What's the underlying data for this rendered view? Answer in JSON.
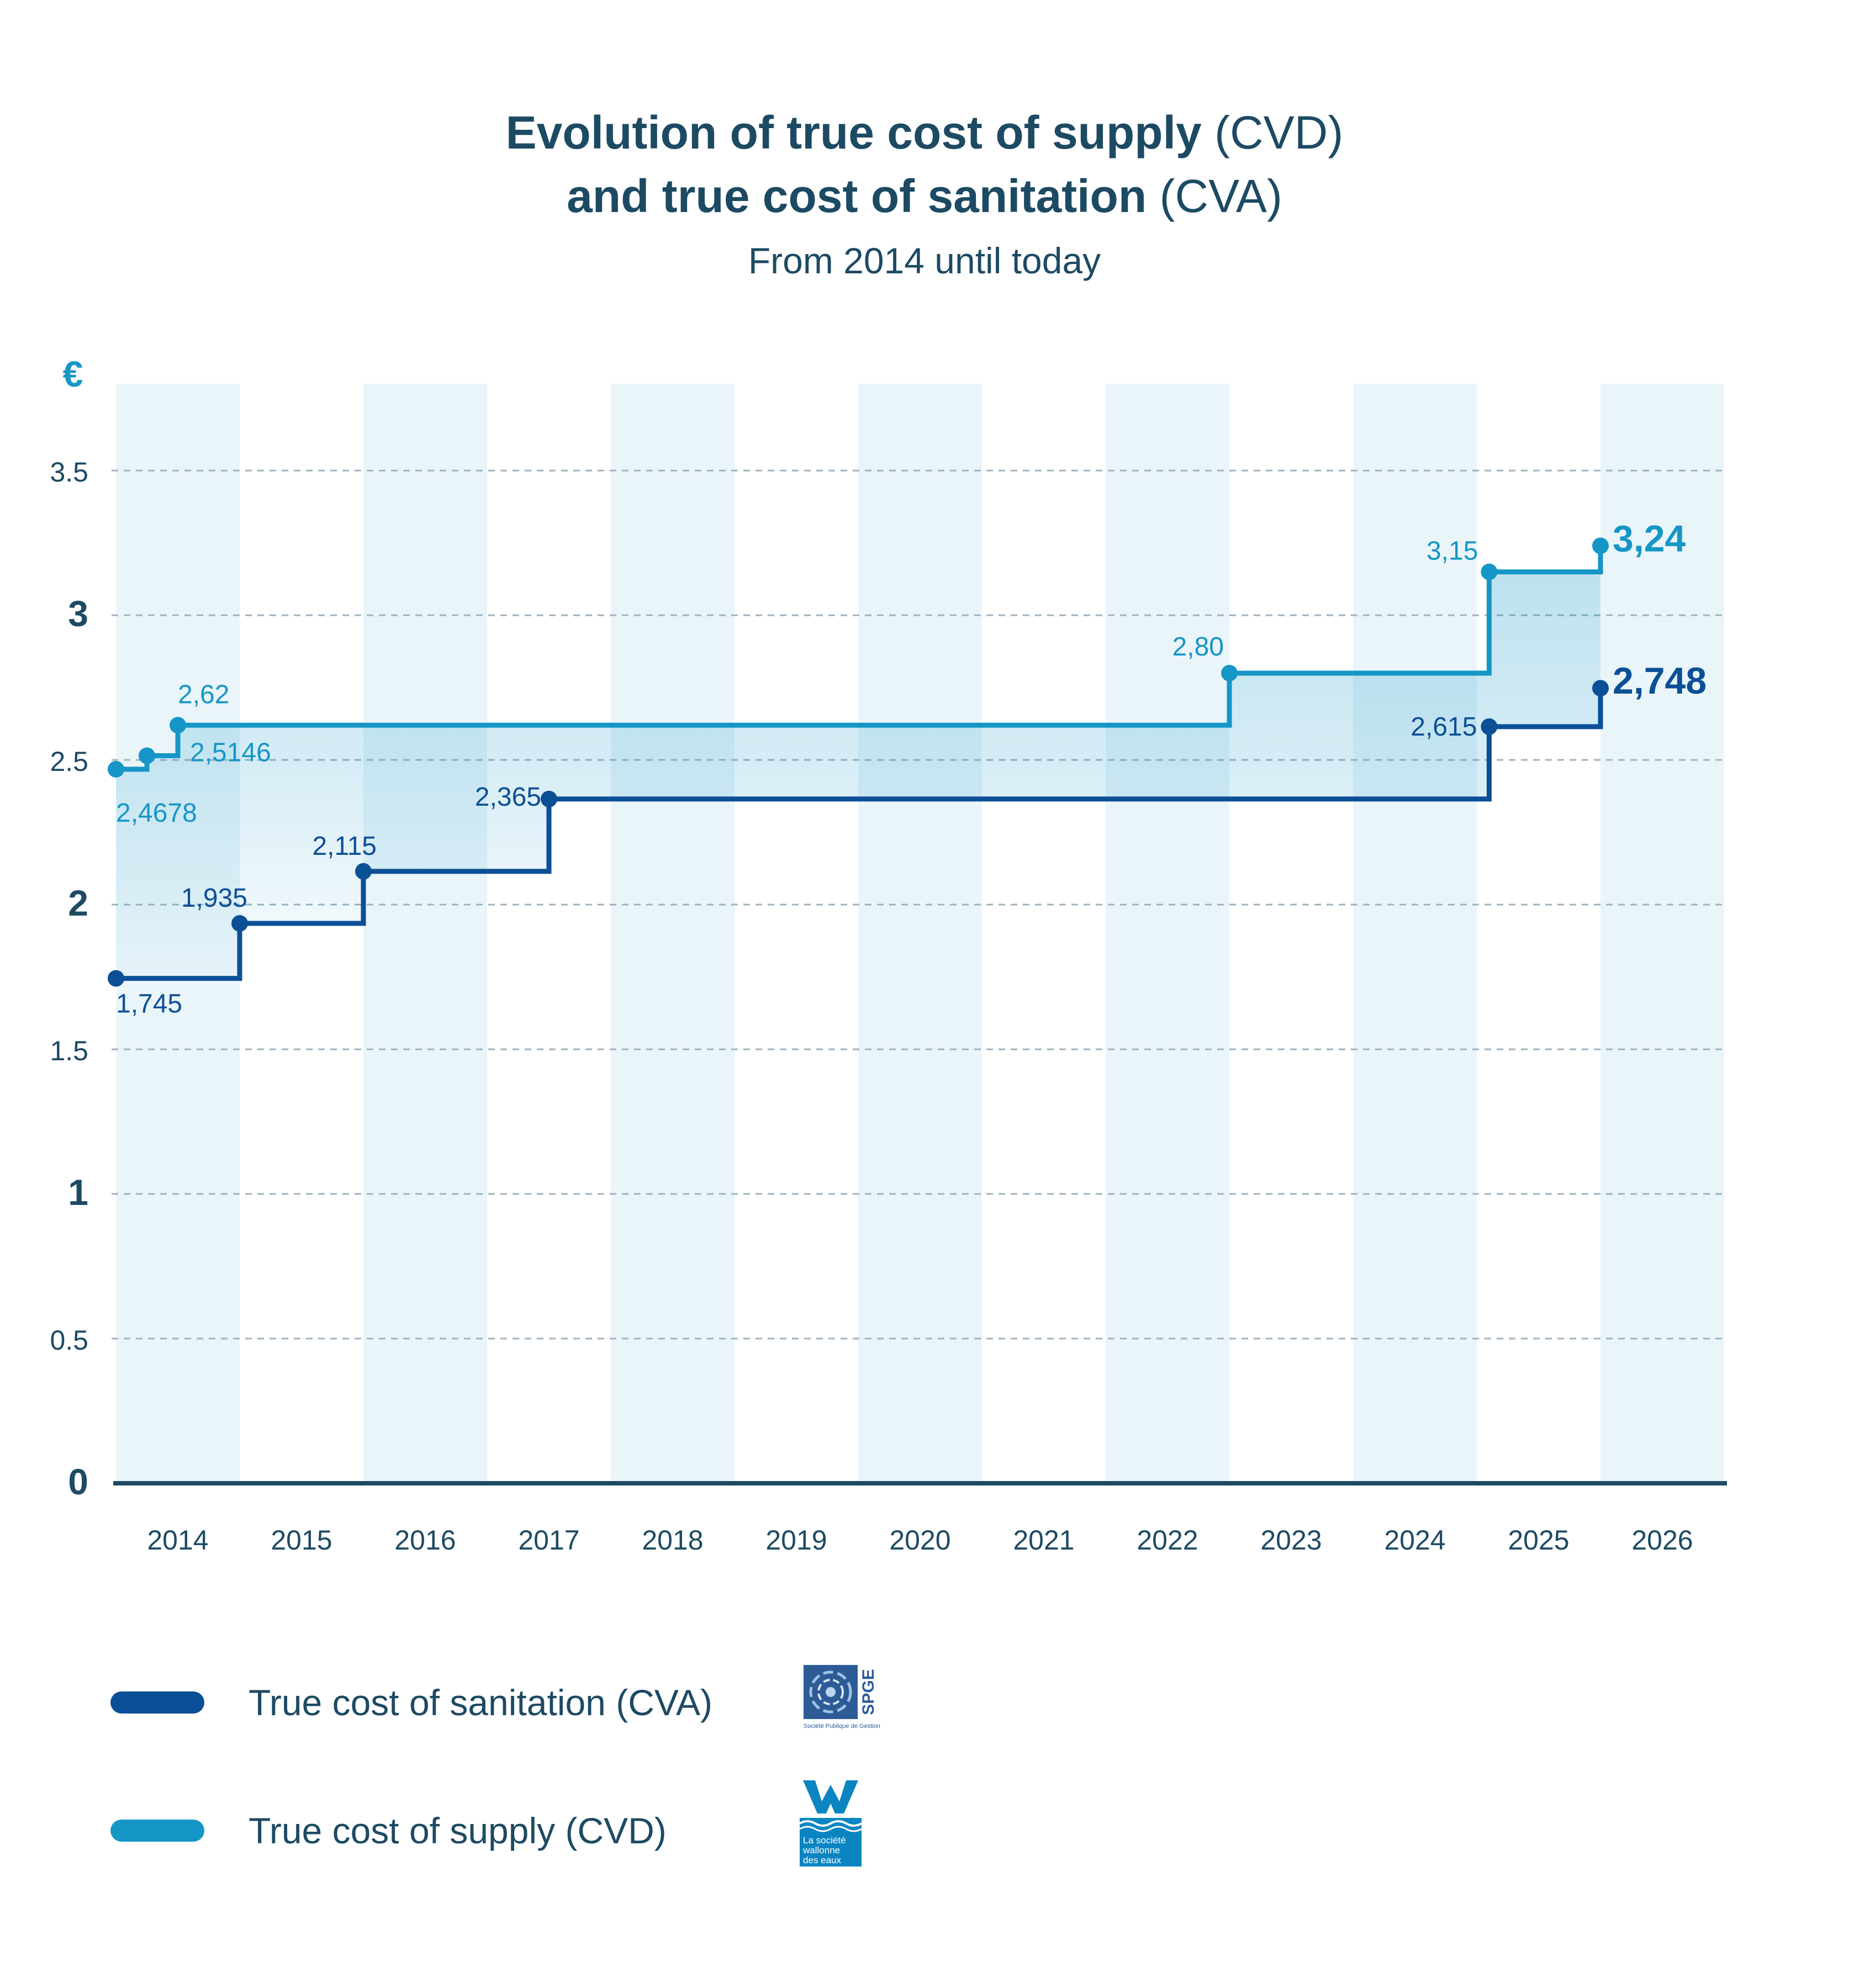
{
  "title": {
    "line1_bold": "Evolution of true cost of supply",
    "line1_normal": "(CVD)",
    "line2_bold": "and true cost of sanitation",
    "line2_normal": "(CVA)",
    "subtitle": "From 2014 until today"
  },
  "colors": {
    "cva": "#0b4f96",
    "cvd": "#1596c6",
    "band": "#eaf5fa",
    "grid": "#9fb3bf",
    "axis": "#1d4a63",
    "text": "#1d4a63"
  },
  "chart_data": {
    "type": "line",
    "step": true,
    "unit_label": "€",
    "ylim": [
      0,
      3.8
    ],
    "yticks": [
      {
        "value": 0,
        "label": "0",
        "bold": true
      },
      {
        "value": 0.5,
        "label": "0.5",
        "bold": false
      },
      {
        "value": 1,
        "label": "1",
        "bold": true
      },
      {
        "value": 1.5,
        "label": "1.5",
        "bold": false
      },
      {
        "value": 2,
        "label": "2",
        "bold": true
      },
      {
        "value": 2.5,
        "label": "2.5",
        "bold": false
      },
      {
        "value": 3,
        "label": "3",
        "bold": true
      },
      {
        "value": 3.5,
        "label": "3.5",
        "bold": false
      }
    ],
    "categories": [
      "2014",
      "2015",
      "2016",
      "2017",
      "2018",
      "2019",
      "2020",
      "2021",
      "2022",
      "2023",
      "2024",
      "2025",
      "2026"
    ],
    "xlim": [
      2014,
      2027
    ],
    "series": [
      {
        "name": "True cost of supply (CVD)",
        "key": "cvd",
        "end_x": 2026.0,
        "points": [
          {
            "x": 2014.0,
            "y": 2.4678,
            "label": "2,4678"
          },
          {
            "x": 2014.25,
            "y": 2.5146,
            "label": "2,5146"
          },
          {
            "x": 2014.5,
            "y": 2.62,
            "label": "2,62"
          },
          {
            "x": 2023.0,
            "y": 2.8,
            "label": "2,80"
          },
          {
            "x": 2025.1,
            "y": 3.15,
            "label": "3,15"
          },
          {
            "x": 2026.0,
            "y": 3.24,
            "label": "3,24"
          }
        ]
      },
      {
        "name": "True cost of sanitation (CVA)",
        "key": "cva",
        "end_x": 2026.0,
        "points": [
          {
            "x": 2014.0,
            "y": 1.745,
            "label": "1,745"
          },
          {
            "x": 2015.0,
            "y": 1.935,
            "label": "1,935"
          },
          {
            "x": 2016.0,
            "y": 2.115,
            "label": "2,115"
          },
          {
            "x": 2017.5,
            "y": 2.365,
            "label": "2,365"
          },
          {
            "x": 2025.1,
            "y": 2.615,
            "label": "2,615"
          },
          {
            "x": 2026.0,
            "y": 2.748,
            "label": "2,748"
          }
        ]
      }
    ]
  },
  "legend": {
    "cva_label": "True cost of sanitation (CVA)",
    "cvd_label": "True cost of supply (CVD)"
  },
  "logos": {
    "spge_text": "SPGE",
    "spge_caption": "Société Publique de Gestion de l'Eau",
    "swde_caption_1": "La société",
    "swde_caption_2": "wallonne",
    "swde_caption_3": "des eaux"
  }
}
